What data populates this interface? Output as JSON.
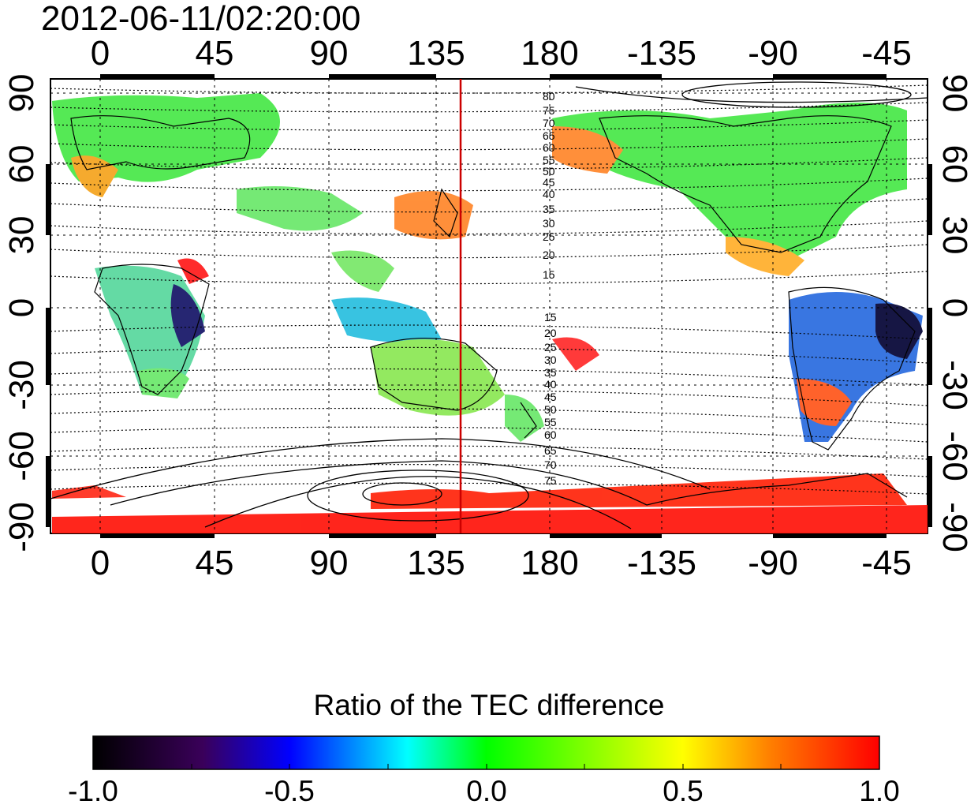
{
  "title": "2012-06-11/02:20:00",
  "top_ticks": [
    "0",
    "45",
    "90",
    "135",
    "180",
    "-135",
    "-90",
    "-45"
  ],
  "bottom_ticks": [
    "0",
    "45",
    "90",
    "135",
    "180",
    "-135",
    "-90",
    "-45"
  ],
  "left_ticks": [
    "90",
    "60",
    "30",
    "0",
    "-30",
    "-60",
    "-90"
  ],
  "right_ticks": [
    "90",
    "60",
    "30",
    "0",
    "-30",
    "-60",
    "-90"
  ],
  "contour_labels_north": [
    "80",
    "75",
    "70",
    "65",
    "60",
    "55",
    "50",
    "45",
    "40",
    "35",
    "30",
    "25",
    "20",
    "15"
  ],
  "contour_labels_south": [
    "15",
    "20",
    "25",
    "30",
    "35",
    "40",
    "45",
    "50",
    "55",
    "60",
    "65",
    "70",
    "75"
  ],
  "meridian_marker_longitude": 143,
  "colorbar": {
    "title": "Ratio of the TEC difference",
    "ticks": [
      "-1.0",
      "-0.5",
      "0.0",
      "0.5",
      "1.0"
    ],
    "gradient_stops": [
      "#000000",
      "#3a005a",
      "#0000ff",
      "#00ffff",
      "#00ff00",
      "#ffff00",
      "#ff8000",
      "#ff0000"
    ]
  },
  "colors": {
    "marker": "#cc0000",
    "grid": "#000000"
  }
}
